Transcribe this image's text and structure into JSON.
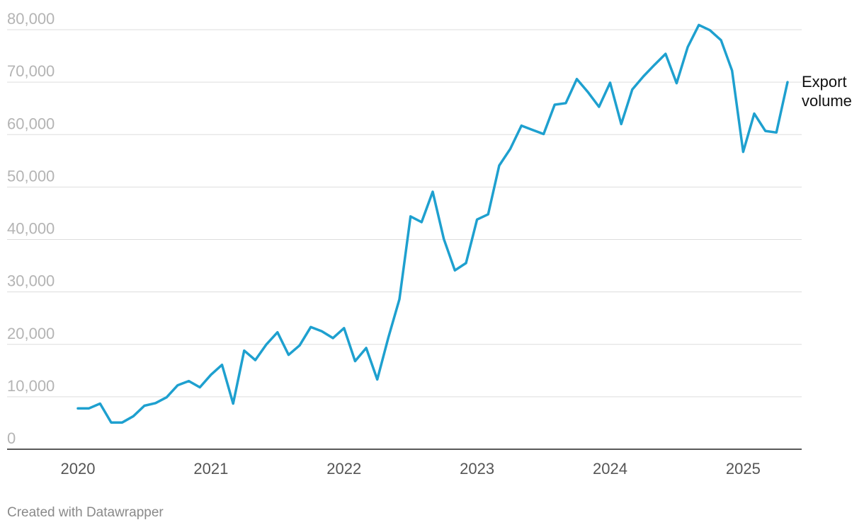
{
  "chart_data": {
    "type": "line",
    "ylim": [
      0,
      80000
    ],
    "yticks": [
      0,
      10000,
      20000,
      30000,
      40000,
      50000,
      60000,
      70000,
      80000
    ],
    "ytick_labels": [
      "0",
      "10,000",
      "20,000",
      "30,000",
      "40,000",
      "50,000",
      "60,000",
      "70,000",
      "80,000"
    ],
    "xlim": [
      "2020-01",
      "2025-05"
    ],
    "xticks": [
      "2020-01",
      "2021-01",
      "2022-01",
      "2023-01",
      "2024-01",
      "2025-01"
    ],
    "xtick_labels": [
      "2020",
      "2021",
      "2022",
      "2023",
      "2024",
      "2025"
    ],
    "grid": true,
    "series": [
      {
        "name": "Export volume",
        "color": "#1ea0cf",
        "x": [
          "2020-01",
          "2020-02",
          "2020-03",
          "2020-04",
          "2020-05",
          "2020-06",
          "2020-07",
          "2020-08",
          "2020-09",
          "2020-10",
          "2020-11",
          "2020-12",
          "2021-01",
          "2021-02",
          "2021-03",
          "2021-04",
          "2021-05",
          "2021-06",
          "2021-07",
          "2021-08",
          "2021-09",
          "2021-10",
          "2021-11",
          "2021-12",
          "2022-01",
          "2022-02",
          "2022-03",
          "2022-04",
          "2022-05",
          "2022-06",
          "2022-07",
          "2022-08",
          "2022-09",
          "2022-10",
          "2022-11",
          "2022-12",
          "2023-01",
          "2023-02",
          "2023-03",
          "2023-04",
          "2023-05",
          "2023-06",
          "2023-07",
          "2023-08",
          "2023-09",
          "2023-10",
          "2023-11",
          "2023-12",
          "2024-01",
          "2024-02",
          "2024-03",
          "2024-04",
          "2024-05",
          "2024-06",
          "2024-07",
          "2024-08",
          "2024-09",
          "2024-10",
          "2024-11",
          "2024-12",
          "2025-01",
          "2025-02",
          "2025-03",
          "2025-04",
          "2025-05"
        ],
        "values": [
          7800,
          7800,
          8700,
          5100,
          5100,
          6300,
          8300,
          8800,
          9900,
          12200,
          13000,
          11800,
          14200,
          16100,
          8700,
          18800,
          17000,
          20000,
          22300,
          18000,
          19800,
          23300,
          22500,
          21200,
          23100,
          16800,
          19300,
          13300,
          21300,
          28600,
          44400,
          43300,
          49100,
          40100,
          34100,
          35500,
          43800,
          44800,
          54100,
          57300,
          61700,
          60900,
          60100,
          65700,
          66000,
          70600,
          68100,
          65300,
          69900,
          62000,
          68600,
          71100,
          73300,
          75400,
          69800,
          76700,
          80900,
          79900,
          78000,
          72200,
          56700,
          64000,
          60700,
          60400,
          70000
        ]
      }
    ]
  },
  "footer": {
    "credit": "Created with Datawrapper"
  }
}
